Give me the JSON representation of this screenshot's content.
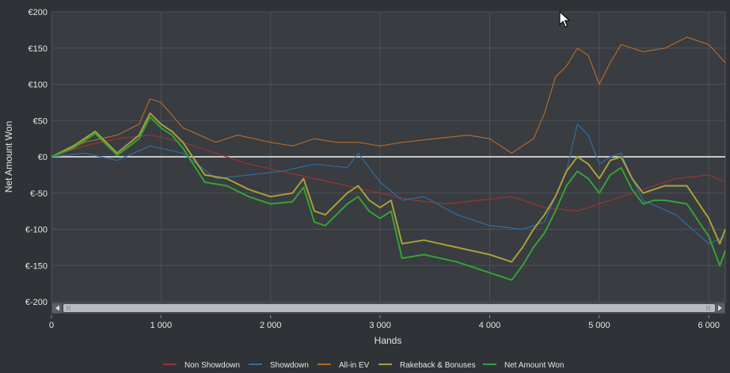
{
  "chart_data": {
    "type": "line",
    "xlabel": "Hands",
    "ylabel": "Net Amount Won",
    "xlim": [
      0,
      6150
    ],
    "ylim": [
      -200,
      200
    ],
    "x_ticks": [
      0,
      1000,
      2000,
      3000,
      4000,
      5000,
      6000
    ],
    "x_tick_labels": [
      "0",
      "1 000",
      "2 000",
      "3 000",
      "4 000",
      "5 000",
      "6 000"
    ],
    "y_ticks": [
      200,
      150,
      100,
      50,
      0,
      -50,
      -100,
      -150,
      -200
    ],
    "y_tick_labels": [
      "€200",
      "€150",
      "€100",
      "€50",
      "€0",
      "€-50",
      "€-100",
      "€-150",
      "€-200"
    ],
    "grid": true,
    "legend_position": "bottom",
    "series": [
      {
        "name": "Non Showdown",
        "color": "#9b3434",
        "x": [
          0,
          300,
          600,
          900,
          1200,
          1500,
          1800,
          2100,
          2400,
          2700,
          3000,
          3300,
          3600,
          3900,
          4200,
          4500,
          4800,
          5100,
          5400,
          5700,
          6000,
          6150
        ],
        "y": [
          0,
          15,
          25,
          30,
          20,
          5,
          -10,
          -20,
          -30,
          -40,
          -50,
          -60,
          -65,
          -60,
          -55,
          -70,
          -75,
          -60,
          -45,
          -30,
          -25,
          -35
        ]
      },
      {
        "name": "Showdown",
        "color": "#2f6da3",
        "x": [
          0,
          300,
          600,
          900,
          1200,
          1500,
          1800,
          2100,
          2400,
          2700,
          2800,
          3000,
          3200,
          3400,
          3700,
          4000,
          4300,
          4500,
          4700,
          4800,
          4900,
          5000,
          5100,
          5200,
          5300,
          5400,
          5700,
          6000,
          6150
        ],
        "y": [
          0,
          5,
          -5,
          15,
          5,
          -30,
          -25,
          -20,
          -10,
          -15,
          5,
          -35,
          -60,
          -55,
          -80,
          -95,
          -100,
          -90,
          -20,
          45,
          30,
          -10,
          0,
          5,
          -30,
          -60,
          -80,
          -120,
          -110
        ]
      },
      {
        "name": "All-in EV",
        "color": "#b06a30",
        "x": [
          0,
          300,
          600,
          800,
          900,
          1000,
          1200,
          1500,
          1700,
          2000,
          2200,
          2400,
          2600,
          2800,
          3000,
          3200,
          3500,
          3800,
          4000,
          4200,
          4300,
          4400,
          4500,
          4600,
          4700,
          4800,
          4900,
          5000,
          5100,
          5200,
          5400,
          5600,
          5800,
          6000,
          6150
        ],
        "y": [
          0,
          20,
          30,
          45,
          80,
          75,
          40,
          20,
          30,
          20,
          15,
          25,
          20,
          20,
          15,
          20,
          25,
          30,
          25,
          5,
          15,
          25,
          60,
          110,
          125,
          150,
          140,
          100,
          130,
          155,
          145,
          150,
          165,
          155,
          130
        ]
      },
      {
        "name": "Rakeback & Bonuses",
        "color": "#a7a23a",
        "x": [
          0,
          200,
          400,
          600,
          800,
          900,
          1000,
          1100,
          1200,
          1400,
          1600,
          1800,
          2000,
          2200,
          2300,
          2400,
          2500,
          2700,
          2800,
          2900,
          3000,
          3100,
          3200,
          3400,
          3700,
          4000,
          4100,
          4200,
          4300,
          4400,
          4500,
          4600,
          4700,
          4800,
          4900,
          5000,
          5100,
          5200,
          5300,
          5400,
          5500,
          5600,
          5800,
          6000,
          6100,
          6150
        ],
        "y": [
          0,
          15,
          35,
          5,
          30,
          60,
          45,
          35,
          20,
          -25,
          -30,
          -45,
          -55,
          -50,
          -30,
          -75,
          -80,
          -50,
          -40,
          -60,
          -70,
          -60,
          -120,
          -115,
          -125,
          -135,
          -140,
          -145,
          -125,
          -100,
          -80,
          -55,
          -20,
          0,
          -10,
          -30,
          -5,
          0,
          -30,
          -50,
          -45,
          -40,
          -40,
          -85,
          -120,
          -100
        ]
      },
      {
        "name": "Net Amount Won",
        "color": "#33a338",
        "x": [
          0,
          200,
          400,
          600,
          800,
          900,
          1000,
          1100,
          1200,
          1400,
          1600,
          1800,
          2000,
          2200,
          2300,
          2400,
          2500,
          2700,
          2800,
          2900,
          3000,
          3100,
          3200,
          3400,
          3700,
          4000,
          4100,
          4200,
          4300,
          4400,
          4500,
          4600,
          4700,
          4800,
          4900,
          5000,
          5100,
          5200,
          5300,
          5400,
          5500,
          5600,
          5800,
          6000,
          6100,
          6150
        ],
        "y": [
          0,
          12,
          32,
          2,
          25,
          55,
          40,
          30,
          12,
          -35,
          -40,
          -55,
          -65,
          -62,
          -42,
          -90,
          -95,
          -65,
          -55,
          -75,
          -85,
          -75,
          -140,
          -135,
          -145,
          -160,
          -165,
          -170,
          -150,
          -125,
          -105,
          -75,
          -40,
          -20,
          -30,
          -50,
          -25,
          -15,
          -45,
          -65,
          -60,
          -60,
          -65,
          -110,
          -150,
          -130
        ]
      }
    ]
  },
  "pointer_icon": "mouse-pointer-icon"
}
